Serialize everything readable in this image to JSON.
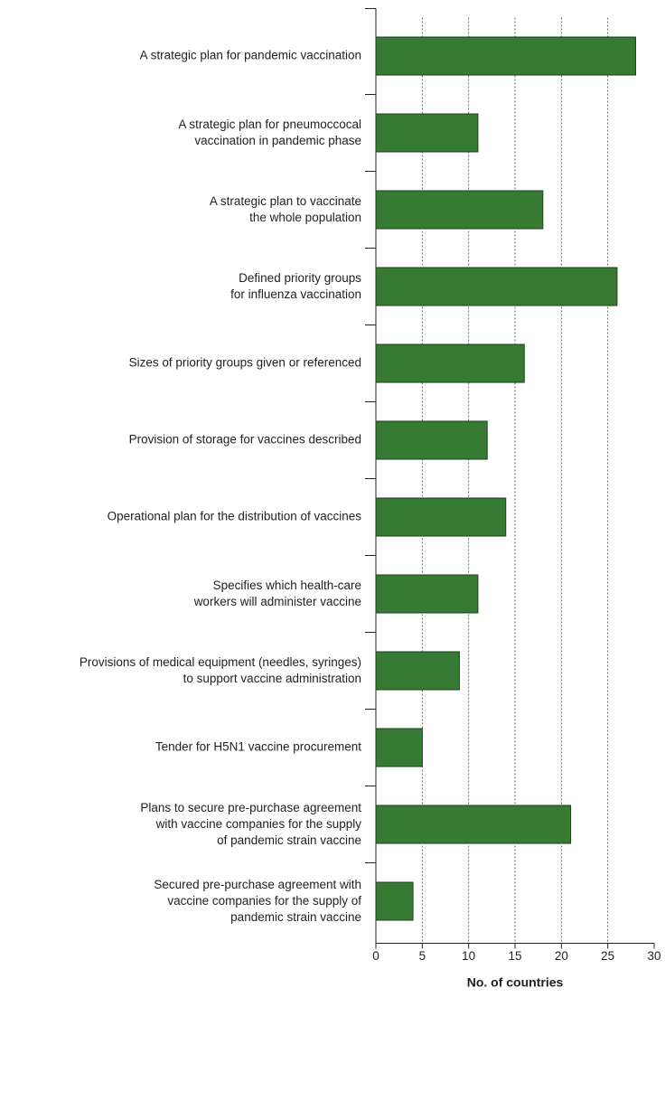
{
  "chart_data": {
    "type": "barh",
    "categories": [
      "A strategic plan for pandemic vaccination",
      "A strategic plan for pneumoccocal\nvaccination in pandemic phase",
      "A strategic plan to vaccinate\nthe whole population",
      "Defined priority groups\nfor influenza vaccination",
      "Sizes of priority groups given or referenced",
      "Provision of storage for vaccines described",
      "Operational plan for the distribution of vaccines",
      "Specifies which health-care\nworkers will administer vaccine",
      "Provisions of medical equipment (needles, syringes)\nto support vaccine administration",
      "Tender for H5N1 vaccine procurement",
      "Plans to secure pre-purchase agreement\nwith vaccine companies for the supply\nof pandemic strain vaccine",
      "Secured pre-purchase agreement with\nvaccine companies for the supply of\npandemic strain vaccine"
    ],
    "values": [
      28,
      11,
      18,
      26,
      16,
      12,
      14,
      11,
      9,
      5,
      21,
      4
    ],
    "color": "#367a33",
    "x_label": "No. of countries",
    "xlim": [
      0,
      30
    ],
    "xticks": [
      0,
      5,
      10,
      15,
      20,
      25,
      30
    ],
    "grid": true
  }
}
